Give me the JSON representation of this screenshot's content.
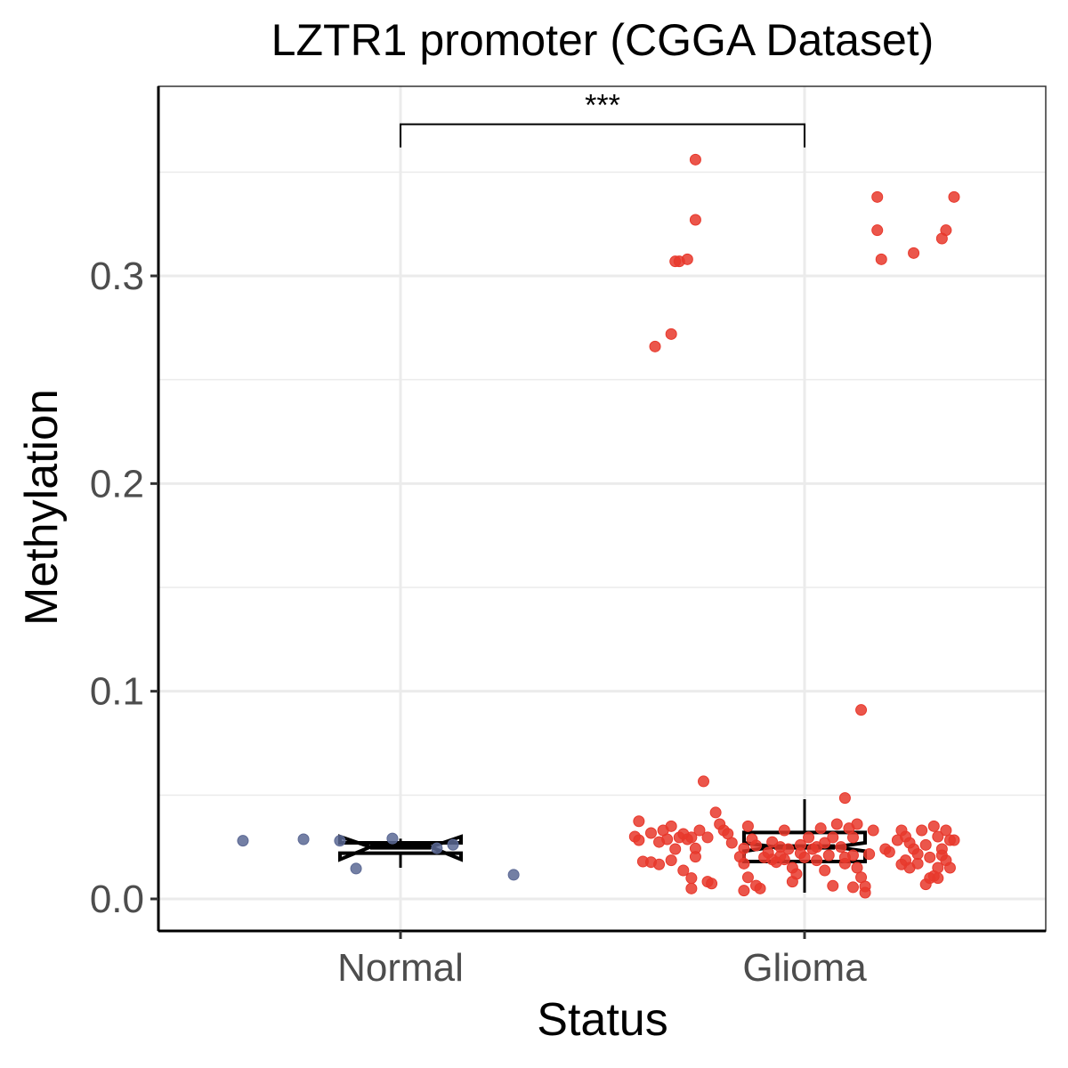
{
  "chart_data": {
    "type": "box+jitter",
    "title": "LZTR1 promoter (CGGA Dataset)",
    "xlabel": "Status",
    "ylabel": "Methylation",
    "categories": [
      "Normal",
      "Glioma"
    ],
    "ylim": [
      -0.016,
      0.39
    ],
    "yticks": [
      0.0,
      0.1,
      0.2,
      0.3
    ],
    "ytick_labels": [
      "0.0",
      "0.1",
      "0.2",
      "0.3"
    ],
    "grid": true,
    "legend": "none",
    "colors": {
      "Normal": "#5b6894",
      "Glioma": "#e8382c"
    },
    "significance": {
      "label": "***",
      "from": "Normal",
      "to": "Glioma",
      "y": 0.373
    },
    "boxes": [
      {
        "category": "Normal",
        "whisker_low": 0.015,
        "q1": 0.022,
        "median": 0.025,
        "q3": 0.027,
        "whisker_high": 0.029,
        "notch_low": 0.019,
        "notch_high": 0.03
      },
      {
        "category": "Glioma",
        "whisker_low": 0.003,
        "q1": 0.018,
        "median": 0.025,
        "q3": 0.032,
        "whisker_high": 0.048,
        "notch_low": 0.023,
        "notch_high": 0.027
      }
    ],
    "series": [
      {
        "name": "Normal",
        "points": [
          {
            "jitter": -0.39,
            "y": 0.028
          },
          {
            "jitter": -0.24,
            "y": 0.0287
          },
          {
            "jitter": -0.15,
            "y": 0.028
          },
          {
            "jitter": -0.02,
            "y": 0.0291
          },
          {
            "jitter": -0.11,
            "y": 0.0146
          },
          {
            "jitter": 0.09,
            "y": 0.0244
          },
          {
            "jitter": 0.13,
            "y": 0.0261
          },
          {
            "jitter": 0.28,
            "y": 0.0116
          }
        ]
      },
      {
        "name": "Glioma",
        "points": [
          {
            "jitter": -0.27,
            "y": 0.356
          },
          {
            "jitter": -0.27,
            "y": 0.327
          },
          {
            "jitter": -0.31,
            "y": 0.307
          },
          {
            "jitter": -0.32,
            "y": 0.307
          },
          {
            "jitter": -0.29,
            "y": 0.308
          },
          {
            "jitter": -0.33,
            "y": 0.272
          },
          {
            "jitter": -0.37,
            "y": 0.266
          },
          {
            "jitter": 0.18,
            "y": 0.338
          },
          {
            "jitter": 0.37,
            "y": 0.338
          },
          {
            "jitter": 0.18,
            "y": 0.322
          },
          {
            "jitter": 0.35,
            "y": 0.322
          },
          {
            "jitter": 0.34,
            "y": 0.318
          },
          {
            "jitter": 0.19,
            "y": 0.308
          },
          {
            "jitter": 0.27,
            "y": 0.311
          },
          {
            "jitter": 0.14,
            "y": 0.091
          },
          {
            "jitter": -0.25,
            "y": 0.0566
          },
          {
            "jitter": 0.1,
            "y": 0.0486
          },
          {
            "jitter": -0.41,
            "y": 0.0374
          },
          {
            "jitter": -0.38,
            "y": 0.0317
          },
          {
            "jitter": -0.42,
            "y": 0.03
          },
          {
            "jitter": -0.41,
            "y": 0.0283
          },
          {
            "jitter": -0.35,
            "y": 0.033
          },
          {
            "jitter": -0.33,
            "y": 0.035
          },
          {
            "jitter": -0.34,
            "y": 0.0287
          },
          {
            "jitter": -0.36,
            "y": 0.0274
          },
          {
            "jitter": -0.31,
            "y": 0.0296
          },
          {
            "jitter": -0.3,
            "y": 0.0313
          },
          {
            "jitter": -0.32,
            "y": 0.024
          },
          {
            "jitter": -0.29,
            "y": 0.0287
          },
          {
            "jitter": -0.28,
            "y": 0.0296
          },
          {
            "jitter": -0.27,
            "y": 0.0243
          },
          {
            "jitter": -0.26,
            "y": 0.033
          },
          {
            "jitter": -0.24,
            "y": 0.0296
          },
          {
            "jitter": -0.22,
            "y": 0.0416
          },
          {
            "jitter": -0.21,
            "y": 0.036
          },
          {
            "jitter": -0.2,
            "y": 0.033
          },
          {
            "jitter": -0.19,
            "y": 0.0314
          },
          {
            "jitter": -0.18,
            "y": 0.027
          },
          {
            "jitter": -0.4,
            "y": 0.018
          },
          {
            "jitter": -0.38,
            "y": 0.0177
          },
          {
            "jitter": -0.36,
            "y": 0.0166
          },
          {
            "jitter": -0.33,
            "y": 0.0186
          },
          {
            "jitter": -0.3,
            "y": 0.0137
          },
          {
            "jitter": -0.28,
            "y": 0.01
          },
          {
            "jitter": -0.27,
            "y": 0.0203
          },
          {
            "jitter": -0.24,
            "y": 0.0083
          },
          {
            "jitter": -0.23,
            "y": 0.0074
          },
          {
            "jitter": -0.28,
            "y": 0.005
          },
          {
            "jitter": -0.16,
            "y": 0.0203
          },
          {
            "jitter": -0.15,
            "y": 0.0243
          },
          {
            "jitter": -0.14,
            "y": 0.035
          },
          {
            "jitter": -0.13,
            "y": 0.0287
          },
          {
            "jitter": -0.12,
            "y": 0.0257
          },
          {
            "jitter": -0.15,
            "y": 0.017
          },
          {
            "jitter": -0.14,
            "y": 0.0104
          },
          {
            "jitter": -0.12,
            "y": 0.0064
          },
          {
            "jitter": -0.15,
            "y": 0.004
          },
          {
            "jitter": -0.11,
            "y": 0.005
          },
          {
            "jitter": -0.09,
            "y": 0.0223
          },
          {
            "jitter": -0.08,
            "y": 0.0274
          },
          {
            "jitter": -0.07,
            "y": 0.0177
          },
          {
            "jitter": -0.06,
            "y": 0.0206
          },
          {
            "jitter": -0.05,
            "y": 0.033
          },
          {
            "jitter": -0.04,
            "y": 0.024
          },
          {
            "jitter": -0.03,
            "y": 0.015
          },
          {
            "jitter": -0.02,
            "y": 0.012
          },
          {
            "jitter": -0.03,
            "y": 0.0083
          },
          {
            "jitter": -0.01,
            "y": 0.026
          },
          {
            "jitter": 0.01,
            "y": 0.0296
          },
          {
            "jitter": 0.02,
            "y": 0.024
          },
          {
            "jitter": 0.03,
            "y": 0.0186
          },
          {
            "jitter": 0.04,
            "y": 0.034
          },
          {
            "jitter": 0.05,
            "y": 0.027
          },
          {
            "jitter": 0.06,
            "y": 0.021
          },
          {
            "jitter": 0.07,
            "y": 0.0296
          },
          {
            "jitter": 0.08,
            "y": 0.036
          },
          {
            "jitter": 0.09,
            "y": 0.025
          },
          {
            "jitter": 0.1,
            "y": 0.017
          },
          {
            "jitter": 0.11,
            "y": 0.034
          },
          {
            "jitter": 0.12,
            "y": 0.0296
          },
          {
            "jitter": 0.13,
            "y": 0.036
          },
          {
            "jitter": 0.07,
            "y": 0.0063
          },
          {
            "jitter": 0.05,
            "y": 0.0137
          },
          {
            "jitter": 0.12,
            "y": 0.0056
          },
          {
            "jitter": 0.13,
            "y": 0.015
          },
          {
            "jitter": 0.14,
            "y": 0.0104
          },
          {
            "jitter": 0.15,
            "y": 0.006
          },
          {
            "jitter": 0.15,
            "y": 0.003
          },
          {
            "jitter": 0.16,
            "y": 0.0216
          },
          {
            "jitter": 0.17,
            "y": 0.033
          },
          {
            "jitter": 0.2,
            "y": 0.024
          },
          {
            "jitter": 0.21,
            "y": 0.0226
          },
          {
            "jitter": 0.23,
            "y": 0.0283
          },
          {
            "jitter": 0.24,
            "y": 0.033
          },
          {
            "jitter": 0.25,
            "y": 0.03
          },
          {
            "jitter": 0.26,
            "y": 0.027
          },
          {
            "jitter": 0.27,
            "y": 0.024
          },
          {
            "jitter": 0.28,
            "y": 0.0216
          },
          {
            "jitter": 0.25,
            "y": 0.0186
          },
          {
            "jitter": 0.24,
            "y": 0.0166
          },
          {
            "jitter": 0.26,
            "y": 0.015
          },
          {
            "jitter": 0.28,
            "y": 0.017
          },
          {
            "jitter": 0.29,
            "y": 0.033
          },
          {
            "jitter": 0.3,
            "y": 0.026
          },
          {
            "jitter": 0.31,
            "y": 0.02
          },
          {
            "jitter": 0.32,
            "y": 0.035
          },
          {
            "jitter": 0.33,
            "y": 0.03
          },
          {
            "jitter": 0.34,
            "y": 0.024
          },
          {
            "jitter": 0.35,
            "y": 0.033
          },
          {
            "jitter": 0.36,
            "y": 0.0283
          },
          {
            "jitter": 0.37,
            "y": 0.0283
          },
          {
            "jitter": 0.34,
            "y": 0.021
          },
          {
            "jitter": 0.35,
            "y": 0.0186
          },
          {
            "jitter": 0.33,
            "y": 0.015
          },
          {
            "jitter": 0.32,
            "y": 0.011
          },
          {
            "jitter": 0.3,
            "y": 0.007
          },
          {
            "jitter": 0.31,
            "y": 0.01
          },
          {
            "jitter": 0.33,
            "y": 0.01
          },
          {
            "jitter": 0.36,
            "y": 0.015
          },
          {
            "jitter": -0.05,
            "y": 0.019
          },
          {
            "jitter": -0.08,
            "y": 0.019
          },
          {
            "jitter": 0.0,
            "y": 0.02
          },
          {
            "jitter": 0.1,
            "y": 0.02
          },
          {
            "jitter": 0.12,
            "y": 0.021
          },
          {
            "jitter": -0.1,
            "y": 0.02
          },
          {
            "jitter": -0.01,
            "y": 0.022
          },
          {
            "jitter": 0.03,
            "y": 0.025
          },
          {
            "jitter": -0.06,
            "y": 0.025
          }
        ]
      }
    ]
  }
}
